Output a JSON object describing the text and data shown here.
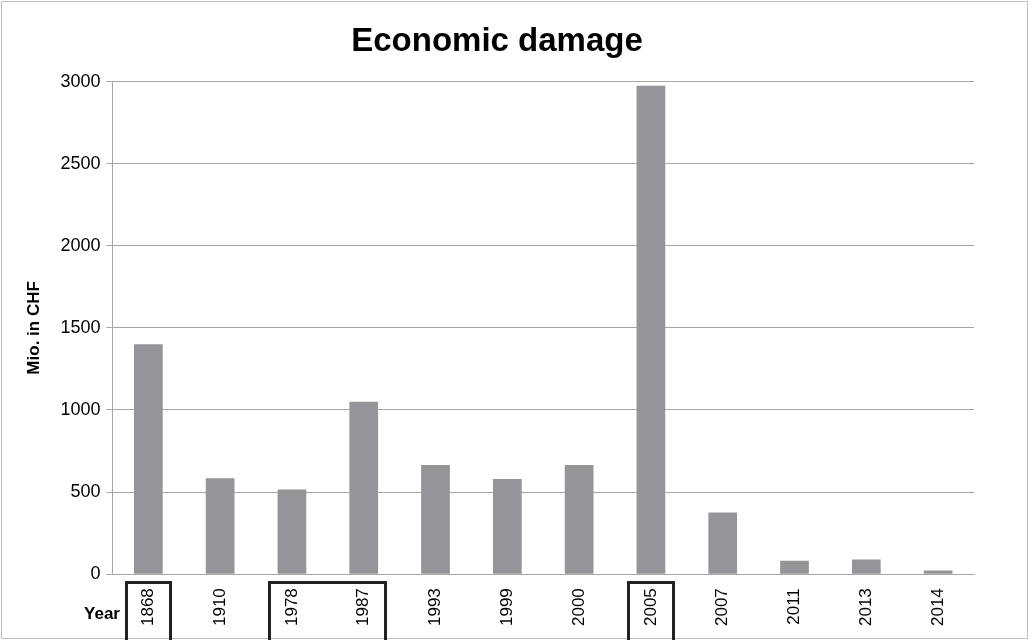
{
  "chart_data": {
    "type": "bar",
    "title": "Economic damage",
    "xlabel": "Year",
    "ylabel": "Mio. in CHF",
    "categories": [
      "1868",
      "1910",
      "1978",
      "1987",
      "1993",
      "1999",
      "2000",
      "2005",
      "2007",
      "2011",
      "2013",
      "2014"
    ],
    "values": [
      1400,
      585,
      515,
      1050,
      665,
      580,
      665,
      2975,
      375,
      82,
      89,
      23
    ],
    "color": "#939598",
    "ylim": [
      0,
      3000
    ],
    "yticks": [
      0,
      500,
      1000,
      1500,
      2000,
      2500,
      3000
    ],
    "grid": "y"
  }
}
